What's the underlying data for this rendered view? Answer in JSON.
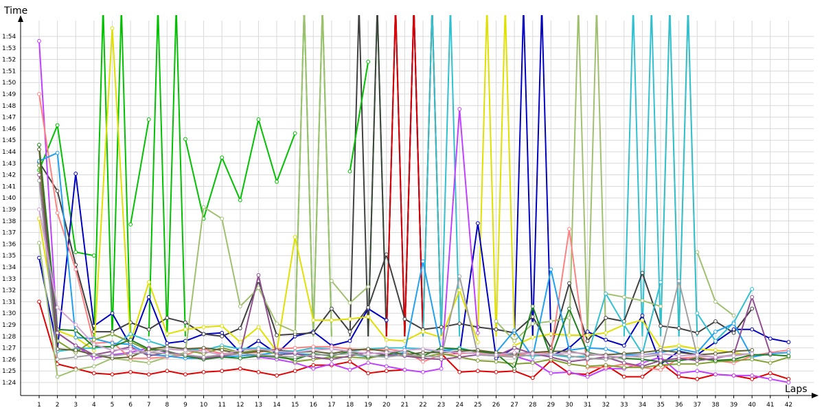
{
  "chart_data": {
    "type": "line",
    "xlabel": "Laps",
    "ylabel": "Time",
    "grid": true,
    "x": [
      1,
      2,
      3,
      4,
      5,
      6,
      7,
      8,
      9,
      10,
      11,
      12,
      13,
      14,
      15,
      16,
      17,
      18,
      19,
      20,
      21,
      22,
      23,
      24,
      25,
      26,
      27,
      28,
      29,
      30,
      31,
      32,
      33,
      34,
      35,
      36,
      37,
      38,
      39,
      40,
      41,
      42
    ],
    "y_ticks": [
      "1:24",
      "1:25",
      "1:26",
      "1:27",
      "1:28",
      "1:29",
      "1:30",
      "1:31",
      "1:32",
      "1:33",
      "1:34",
      "1:35",
      "1:36",
      "1:37",
      "1:38",
      "1:39",
      "1:40",
      "1:41",
      "1:42",
      "1:43",
      "1:44",
      "1:45",
      "1:46",
      "1:47",
      "1:48",
      "1:49",
      "1:50",
      "1:51",
      "1:52",
      "1:53",
      "1:54"
    ],
    "ylim": [
      "1:23.2",
      "1:55.8"
    ],
    "series": [
      {
        "color": "#e00000",
        "values": [
          91.0,
          85.6,
          85.2,
          84.8,
          84.7,
          84.9,
          84.7,
          85.0,
          84.7,
          84.9,
          85.0,
          85.2,
          84.9,
          84.6,
          85.0,
          85.5,
          85.5,
          85.8,
          84.8,
          85.0,
          85.1,
          null,
          86.5,
          84.9,
          85.0,
          84.9,
          85.0,
          84.4,
          85.9,
          84.8,
          84.7,
          85.5,
          84.5,
          84.5,
          85.7,
          84.5,
          84.3,
          84.7,
          84.6,
          84.3,
          84.8,
          84.3
        ]
      },
      {
        "color": "#00c000",
        "values": [
          102.4,
          106.3,
          95.3,
          95.0,
          null,
          97.7,
          106.8,
          null,
          105.1,
          98.2,
          103.5,
          99.8,
          106.8,
          101.4,
          105.6,
          null,
          null,
          102.3,
          111.8,
          null,
          null,
          null,
          null,
          null,
          null,
          null,
          null,
          null,
          null,
          null,
          null,
          null,
          null,
          null,
          null,
          null,
          null,
          null,
          null,
          null,
          null,
          null
        ]
      },
      {
        "color": "#0000c0",
        "values": [
          94.8,
          86.9,
          102.1,
          88.9,
          90.0,
          87.2,
          91.4,
          87.4,
          87.6,
          88.2,
          88.3,
          86.6,
          87.6,
          86.5,
          88.0,
          88.4,
          87.2,
          87.6,
          90.4,
          89.4,
          null,
          null,
          86.8,
          86.5,
          97.8,
          86.1,
          87.0,
          null,
          86.3,
          87.0,
          88.4,
          87.7,
          87.2,
          89.8,
          85.6,
          86.7,
          86.4,
          87.5,
          88.6,
          88.6,
          87.8,
          87.5
        ]
      },
      {
        "color": "#404040",
        "values": [
          103.1,
          100.6,
          94.2,
          88.4,
          88.4,
          89.2,
          88.6,
          89.6,
          89.2,
          88.2,
          88.0,
          88.7,
          92.8,
          88.1,
          88.2,
          88.3,
          90.4,
          88.4,
          90.5,
          95.1,
          89.5,
          88.6,
          88.8,
          89.1,
          88.8,
          88.6,
          88.3,
          89.7,
          87.0,
          92.6,
          87.6,
          89.6,
          89.3,
          93.5,
          88.9,
          88.7,
          88.3,
          89.3,
          88.3,
          90.4,
          null,
          null
        ]
      },
      {
        "color": "#e0e000",
        "values": [
          98.2,
          88.5,
          87.9,
          86.8,
          114.7,
          87.5,
          92.7,
          88.2,
          88.6,
          88.8,
          88.9,
          87.5,
          88.8,
          86.7,
          96.6,
          89.4,
          89.4,
          89.5,
          89.7,
          87.7,
          87.6,
          88.4,
          87.9,
          92.0,
          87.5,
          null,
          87.2,
          87.9,
          88.2,
          88.1,
          88.1,
          88.3,
          89.0,
          89.4,
          87.0,
          87.2,
          86.9,
          86.8,
          86.6,
          86.3,
          null,
          null
        ]
      },
      {
        "color": "#c040ff",
        "values": [
          113.6,
          88.3,
          87.2,
          86.1,
          86.4,
          86.6,
          87.0,
          86.6,
          86.4,
          86.2,
          86.4,
          86.6,
          86.2,
          86.0,
          85.7,
          85.2,
          85.6,
          85.1,
          85.7,
          85.4,
          85.1,
          84.9,
          85.2,
          107.7,
          88.3,
          null,
          86.3,
          85.8,
          84.8,
          84.9,
          84.5,
          85.2,
          85.2,
          85.7,
          86.2,
          84.8,
          85.0,
          84.7,
          84.6,
          84.6,
          84.3,
          84.0
        ]
      },
      {
        "color": "#a0c070",
        "values": [
          96.1,
          84.5,
          85.1,
          85.4,
          86.1,
          85.9,
          85.7,
          86.2,
          86.6,
          99.2,
          98.2,
          90.6,
          92.2,
          89.1,
          88.4,
          null,
          92.8,
          90.9,
          92.3,
          null,
          null,
          null,
          null,
          null,
          null,
          89.3,
          87.6,
          89.1,
          89.3,
          89.6,
          null,
          91.7,
          91.4,
          91.1,
          90.6,
          null,
          95.3,
          91.0,
          89.8,
          null,
          null,
          null
        ]
      },
      {
        "color": "#30c0d0",
        "values": [
          102.8,
          86.7,
          86.9,
          87.0,
          87.1,
          88.2,
          87.6,
          87.1,
          86.9,
          86.8,
          87.2,
          86.9,
          87.0,
          86.8,
          86.7,
          87.0,
          86.9,
          86.7,
          86.9,
          87.0,
          87.0,
          86.9,
          86.6,
          87.0,
          86.6,
          86.5,
          86.4,
          86.3,
          86.4,
          86.2,
          86.3,
          91.7,
          89.0,
          86.5,
          92.7,
          null,
          90.0,
          87.6,
          89.2,
          92.1,
          null,
          null
        ]
      },
      {
        "color": "#ff8080",
        "values": [
          109.0,
          98.7,
          93.8,
          87.4,
          87.5,
          86.1,
          86.1,
          86.2,
          86.4,
          86.9,
          86.5,
          86.6,
          86.6,
          86.9,
          87.0,
          87.1,
          87.1,
          86.9,
          86.8,
          86.9,
          86.7,
          85.8,
          86.4,
          86.5,
          86.6,
          86.4,
          86.3,
          86.6,
          86.6,
          97.3,
          85.3,
          85.3,
          85.6,
          85.3,
          85.1,
          86.1,
          86.2,
          85.9,
          85.7,
          86.3,
          86.6,
          86.8
        ]
      },
      {
        "color": "#20a0f0",
        "values": [
          103.2,
          103.9,
          87.9,
          87.8,
          87.4,
          87.3,
          86.4,
          86.3,
          86.1,
          86.1,
          86.2,
          86.3,
          86.4,
          86.6,
          86.5,
          86.4,
          86.4,
          86.5,
          86.2,
          86.3,
          86.6,
          94.5,
          86.8,
          86.9,
          86.7,
          86.6,
          88.5,
          86.2,
          93.8,
          86.8,
          87.0,
          86.9,
          86.4,
          86.4,
          86.6,
          86.9,
          86.6,
          88.4,
          89.1,
          86.2,
          86.5,
          86.6
        ]
      },
      {
        "color": "#80a030",
        "values": [
          102.8,
          87.6,
          86.6,
          87.7,
          88.2,
          87.5,
          86.8,
          86.9,
          86.8,
          86.5,
          87.0,
          86.6,
          86.8,
          86.5,
          85.8,
          86.0,
          86.2,
          86.2,
          86.1,
          86.4,
          86.3,
          86.2,
          86.5,
          86.2,
          85.9,
          85.8,
          85.6,
          85.7,
          86.0,
          85.6,
          85.4,
          85.5,
          85.3,
          85.3,
          85.5,
          85.6,
          85.6,
          85.8,
          85.9,
          86.0,
          85.7,
          86.2
        ]
      },
      {
        "color": "#208020",
        "values": [
          104.6,
          88.6,
          88.5,
          87.1,
          87.1,
          87.7,
          86.9,
          86.7,
          86.3,
          86.0,
          86.2,
          86.1,
          86.3,
          86.2,
          86.0,
          86.5,
          86.3,
          86.7,
          86.2,
          86.4,
          86.8,
          86.3,
          87.0,
          86.9,
          86.7,
          86.5,
          85.2,
          90.6,
          86.2,
          90.4,
          86.6,
          86.3,
          86.1,
          86.0,
          85.8,
          85.9,
          86.1,
          85.9,
          86.0,
          86.4,
          86.4,
          86.3
        ]
      },
      {
        "color": "#606030",
        "values": [
          104.2,
          86.9,
          86.8,
          86.4,
          86.1,
          86.2,
          86.9,
          87.1,
          86.9,
          87.0,
          86.8,
          86.5,
          86.7,
          86.8,
          86.6,
          86.7,
          86.5,
          86.8,
          86.9,
          86.7,
          86.4,
          86.6,
          86.6,
          86.7,
          86.8,
          86.6,
          86.5,
          86.6,
          86.7,
          86.7,
          86.4,
          86.4,
          86.5,
          86.6,
          86.8,
          86.6,
          86.4,
          86.5,
          86.7,
          86.8,
          null,
          null
        ]
      },
      {
        "color": "#905090",
        "values": [
          102.0,
          88.3,
          87.2,
          86.4,
          86.7,
          87.1,
          86.3,
          86.6,
          86.4,
          86.1,
          86.3,
          86.5,
          93.3,
          86.4,
          86.5,
          86.2,
          86.0,
          86.3,
          86.6,
          86.4,
          86.3,
          86.1,
          86.0,
          86.2,
          86.4,
          86.3,
          87.0,
          86.5,
          86.2,
          85.8,
          86.0,
          86.2,
          85.7,
          85.4,
          85.9,
          86.1,
          85.9,
          86.1,
          86.4,
          91.4,
          86.5,
          null
        ]
      },
      {
        "color": "#a0a0a0",
        "values": [
          101.5,
          86.0,
          86.2,
          86.4,
          86.3,
          86.5,
          86.6,
          86.5,
          86.4,
          86.2,
          86.4,
          86.5,
          86.4,
          86.3,
          86.2,
          86.4,
          86.4,
          86.5,
          86.3,
          86.2,
          86.4,
          86.3,
          86.2,
          93.2,
          86.4,
          86.3,
          86.2,
          86.4,
          86.5,
          86.3,
          86.1,
          86.0,
          86.3,
          86.2,
          86.4,
          92.8,
          86.3,
          86.2,
          86.4,
          86.5,
          null,
          null
        ]
      },
      {
        "color": "#d0a0d0",
        "values": [
          99.0,
          90.5,
          89.0,
          87.3,
          86.8,
          86.9,
          86.6,
          86.9,
          86.8,
          86.7,
          86.4,
          86.8,
          86.9,
          86.7,
          86.6,
          86.8,
          86.9,
          86.7,
          86.5,
          86.6,
          86.8,
          86.9,
          86.7,
          86.6,
          86.5,
          86.4,
          86.6,
          86.5,
          86.4,
          86.6,
          86.5,
          86.3,
          86.2,
          86.4,
          86.5,
          86.3,
          86.4,
          86.2,
          86.3,
          86.5,
          null,
          null
        ]
      }
    ],
    "offchart": [
      {
        "color": "#00c000",
        "x": [
          4,
          5,
          6,
          7,
          8,
          9,
          15,
          16,
          19,
          20,
          21,
          22,
          23
        ],
        "up": [
          [
            4,
            5
          ],
          [
            5,
            6
          ],
          [
            7,
            8
          ],
          [
            8,
            9
          ],
          [
            15,
            16
          ],
          [
            16,
            17
          ],
          [
            19,
            20
          ],
          [
            20,
            21
          ],
          [
            21,
            22
          ],
          [
            22,
            23
          ]
        ]
      },
      {
        "color": "#404040",
        "x": [
          18,
          19
        ],
        "up": [
          [
            18,
            19
          ],
          [
            19,
            20
          ],
          [
            21,
            22
          ]
        ]
      },
      {
        "color": "#0000c0",
        "x": [
          27,
          28
        ],
        "up": [
          [
            27,
            28
          ],
          [
            28,
            29
          ],
          [
            20,
            21
          ],
          [
            21,
            22
          ]
        ]
      },
      {
        "color": "#e00000",
        "x": [
          21,
          22
        ],
        "up": [
          [
            20,
            21
          ],
          [
            21,
            22
          ],
          [
            22,
            23
          ]
        ]
      },
      {
        "color": "#e0e000",
        "x": [
          25,
          26
        ],
        "up": [
          [
            25,
            26
          ],
          [
            26,
            27
          ]
        ]
      },
      {
        "color": "#a0c070",
        "x": [
          16
        ],
        "up": [
          [
            15,
            16
          ],
          [
            16,
            17
          ],
          [
            30,
            31
          ],
          [
            31,
            32
          ],
          [
            35,
            36
          ],
          [
            36,
            37
          ]
        ]
      },
      {
        "color": "#30c0d0",
        "x": [
          33,
          34
        ],
        "up": [
          [
            33,
            34
          ],
          [
            34,
            35
          ],
          [
            35,
            36
          ],
          [
            36,
            37
          ],
          [
            22,
            23
          ],
          [
            23,
            24
          ]
        ]
      }
    ]
  }
}
